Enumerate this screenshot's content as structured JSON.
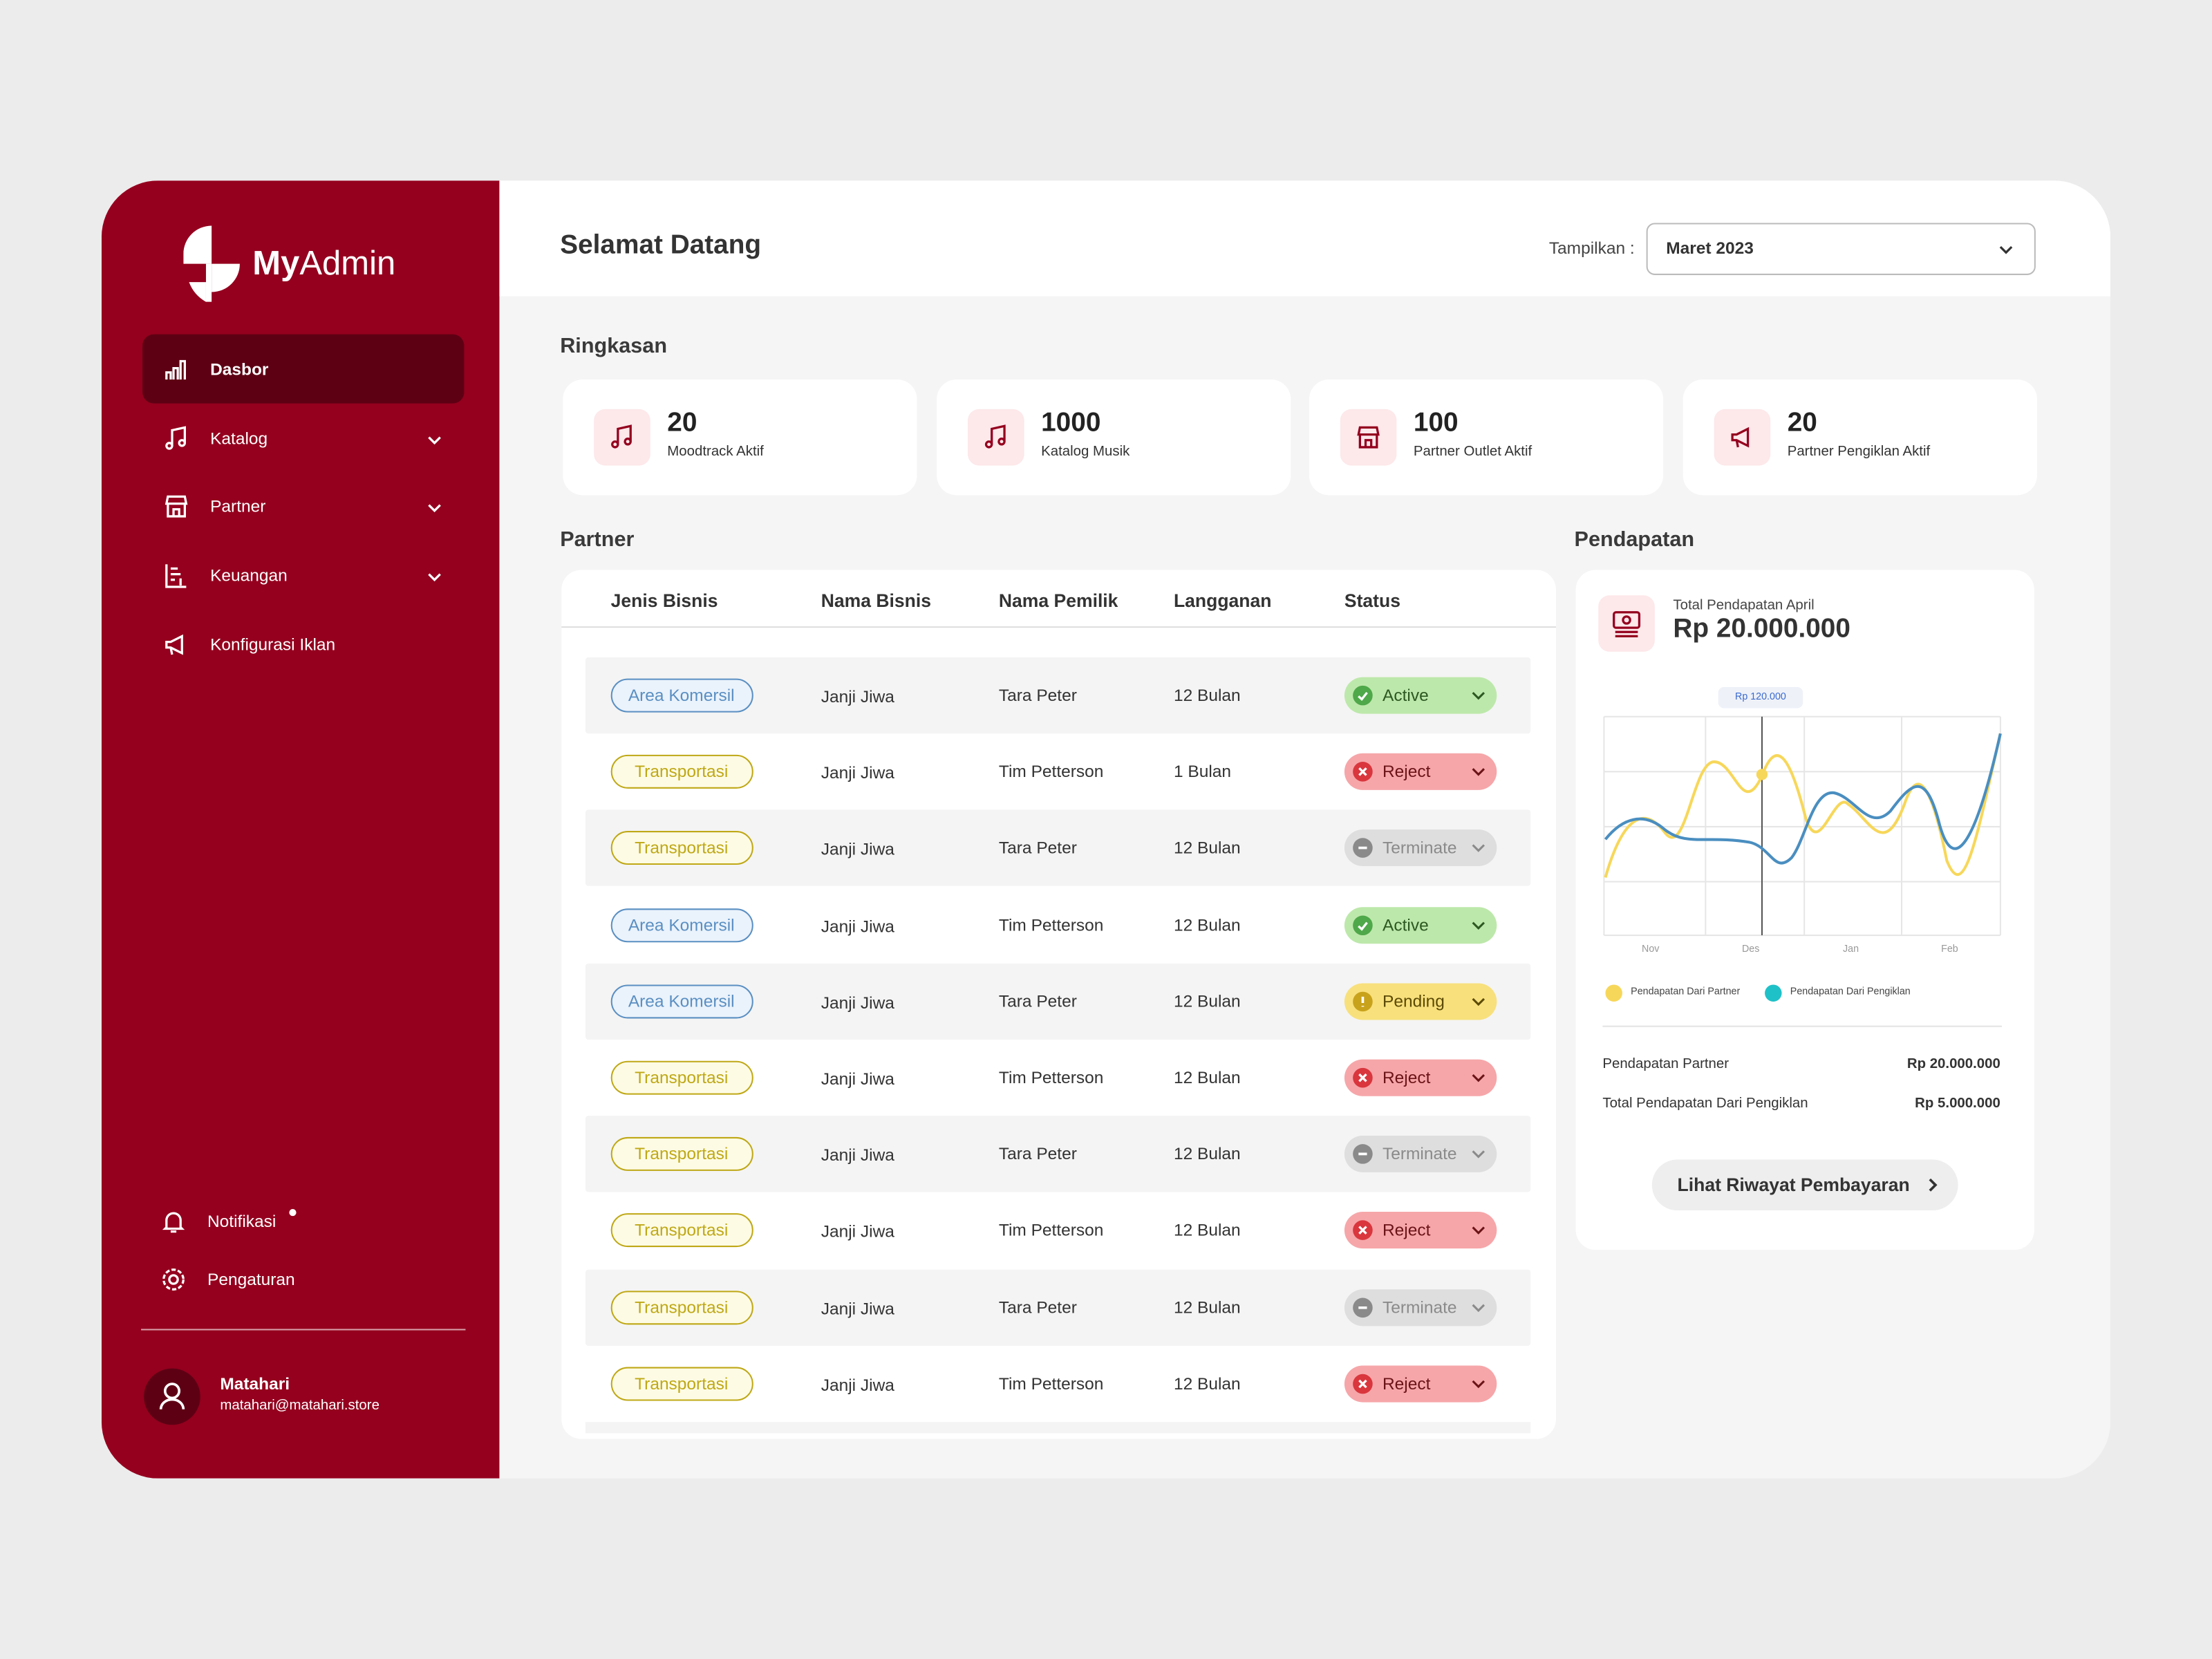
{
  "sidebar": {
    "brand_bold": "My",
    "brand_light": "Admin",
    "nav": [
      "Dasbor",
      "Katalog",
      "Partner",
      "Keuangan",
      "Konfigurasi Iklan"
    ],
    "bottom": [
      "Notifikasi",
      "Pengaturan"
    ],
    "user": {
      "name": "Matahari",
      "email": "matahari@matahari.store"
    }
  },
  "header": {
    "title": "Selamat Datang",
    "filter_label": "Tampilkan :",
    "filter_value": "Maret 2023"
  },
  "summary": {
    "title": "Ringkasan",
    "cards": [
      {
        "value": 20,
        "label": "Moodtrack Aktif"
      },
      {
        "value": 1000,
        "label": "Katalog Musik"
      },
      {
        "value": 100,
        "label": "Partner Outlet Aktif"
      },
      {
        "value": 20,
        "label": "Partner Pengiklan Aktif"
      }
    ]
  },
  "partner": {
    "title": "Partner",
    "columns": [
      "Jenis Bisnis",
      "Nama Bisnis",
      "Nama Pemilik",
      "Langganan",
      "Status"
    ],
    "type_colors": {
      "Area Komersil": {
        "bg": "#eaf2fb",
        "fg": "#5a8fc2"
      },
      "Transportasi": {
        "bg": "#fdfbe4",
        "fg": "#bfa816"
      }
    },
    "status_colors": {
      "Active": {
        "bg": "#bde8ab",
        "fg": "#2d5821",
        "icon": "#4fa84a"
      },
      "Reject": {
        "bg": "#f6a6a9",
        "fg": "#6b1418",
        "icon": "#d9363e"
      },
      "Terminate": {
        "bg": "#dedede",
        "fg": "#8a8a8a",
        "icon": "#8a8a8a"
      },
      "Pending": {
        "bg": "#f8e07c",
        "fg": "#5c4a05",
        "icon": "#c9a21c"
      }
    },
    "rows": [
      {
        "type": "Area Komersil",
        "business": "Janji Jiwa",
        "owner": "Tara Peter",
        "subscription": "12 Bulan",
        "status": "Active"
      },
      {
        "type": "Transportasi",
        "business": "Janji Jiwa",
        "owner": "Tim Petterson",
        "subscription": "1 Bulan",
        "status": "Reject"
      },
      {
        "type": "Transportasi",
        "business": "Janji Jiwa",
        "owner": "Tara Peter",
        "subscription": "12 Bulan",
        "status": "Terminate"
      },
      {
        "type": "Area Komersil",
        "business": "Janji Jiwa",
        "owner": "Tim Petterson",
        "subscription": "12 Bulan",
        "status": "Active"
      },
      {
        "type": "Area Komersil",
        "business": "Janji Jiwa",
        "owner": "Tara Peter",
        "subscription": "12 Bulan",
        "status": "Pending"
      },
      {
        "type": "Transportasi",
        "business": "Janji Jiwa",
        "owner": "Tim Petterson",
        "subscription": "12 Bulan",
        "status": "Reject"
      },
      {
        "type": "Transportasi",
        "business": "Janji Jiwa",
        "owner": "Tara Peter",
        "subscription": "12 Bulan",
        "status": "Terminate"
      },
      {
        "type": "Transportasi",
        "business": "Janji Jiwa",
        "owner": "Tim Petterson",
        "subscription": "12 Bulan",
        "status": "Reject"
      },
      {
        "type": "Transportasi",
        "business": "Janji Jiwa",
        "owner": "Tara Peter",
        "subscription": "12 Bulan",
        "status": "Terminate"
      },
      {
        "type": "Transportasi",
        "business": "Janji Jiwa",
        "owner": "Tim Petterson",
        "subscription": "12 Bulan",
        "status": "Reject"
      }
    ]
  },
  "revenue": {
    "title": "Pendapatan",
    "total_label": "Total Pendapatan April",
    "total_value": "Rp 20.000.000",
    "chart": {
      "tooltip": "Rp 120.000",
      "x_labels": [
        "Nov",
        "Des",
        "Jan",
        "Feb"
      ],
      "legend": [
        {
          "name": "Pendapatan Dari Partner",
          "color": "#f7d75a"
        },
        {
          "name": "Pendapatan Dari Pengiklan",
          "color": "#1fc1c8"
        }
      ]
    },
    "rows": [
      {
        "label": "Pendapatan Partner",
        "value": "Rp 20.000.000"
      },
      {
        "label": "Total Pendapatan Dari Pengiklan",
        "value": "Rp 5.000.000"
      }
    ],
    "button": "Lihat Riwayat Pembayaran"
  }
}
